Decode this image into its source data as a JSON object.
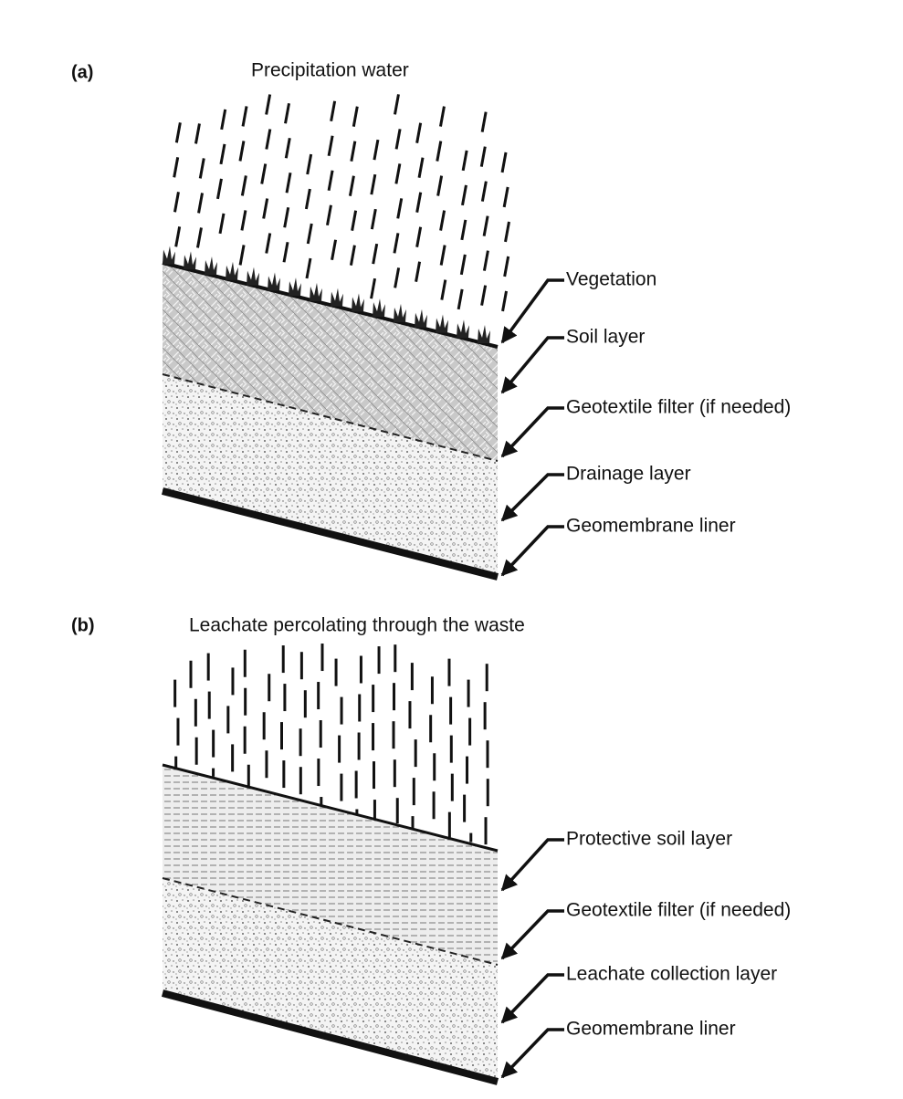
{
  "panels": [
    {
      "label": "(a)",
      "title": "Precipitation water",
      "callouts": [
        "Vegetation",
        "Soil layer",
        "Geotextile filter (if needed)",
        "Drainage layer",
        "Geomembrane liner"
      ]
    },
    {
      "label": "(b)",
      "title": "Leachate percolating through the waste",
      "callouts": [
        "Protective soil layer",
        "Geotextile filter (if needed)",
        "Leachate collection layer",
        "Geomembrane liner"
      ]
    }
  ]
}
